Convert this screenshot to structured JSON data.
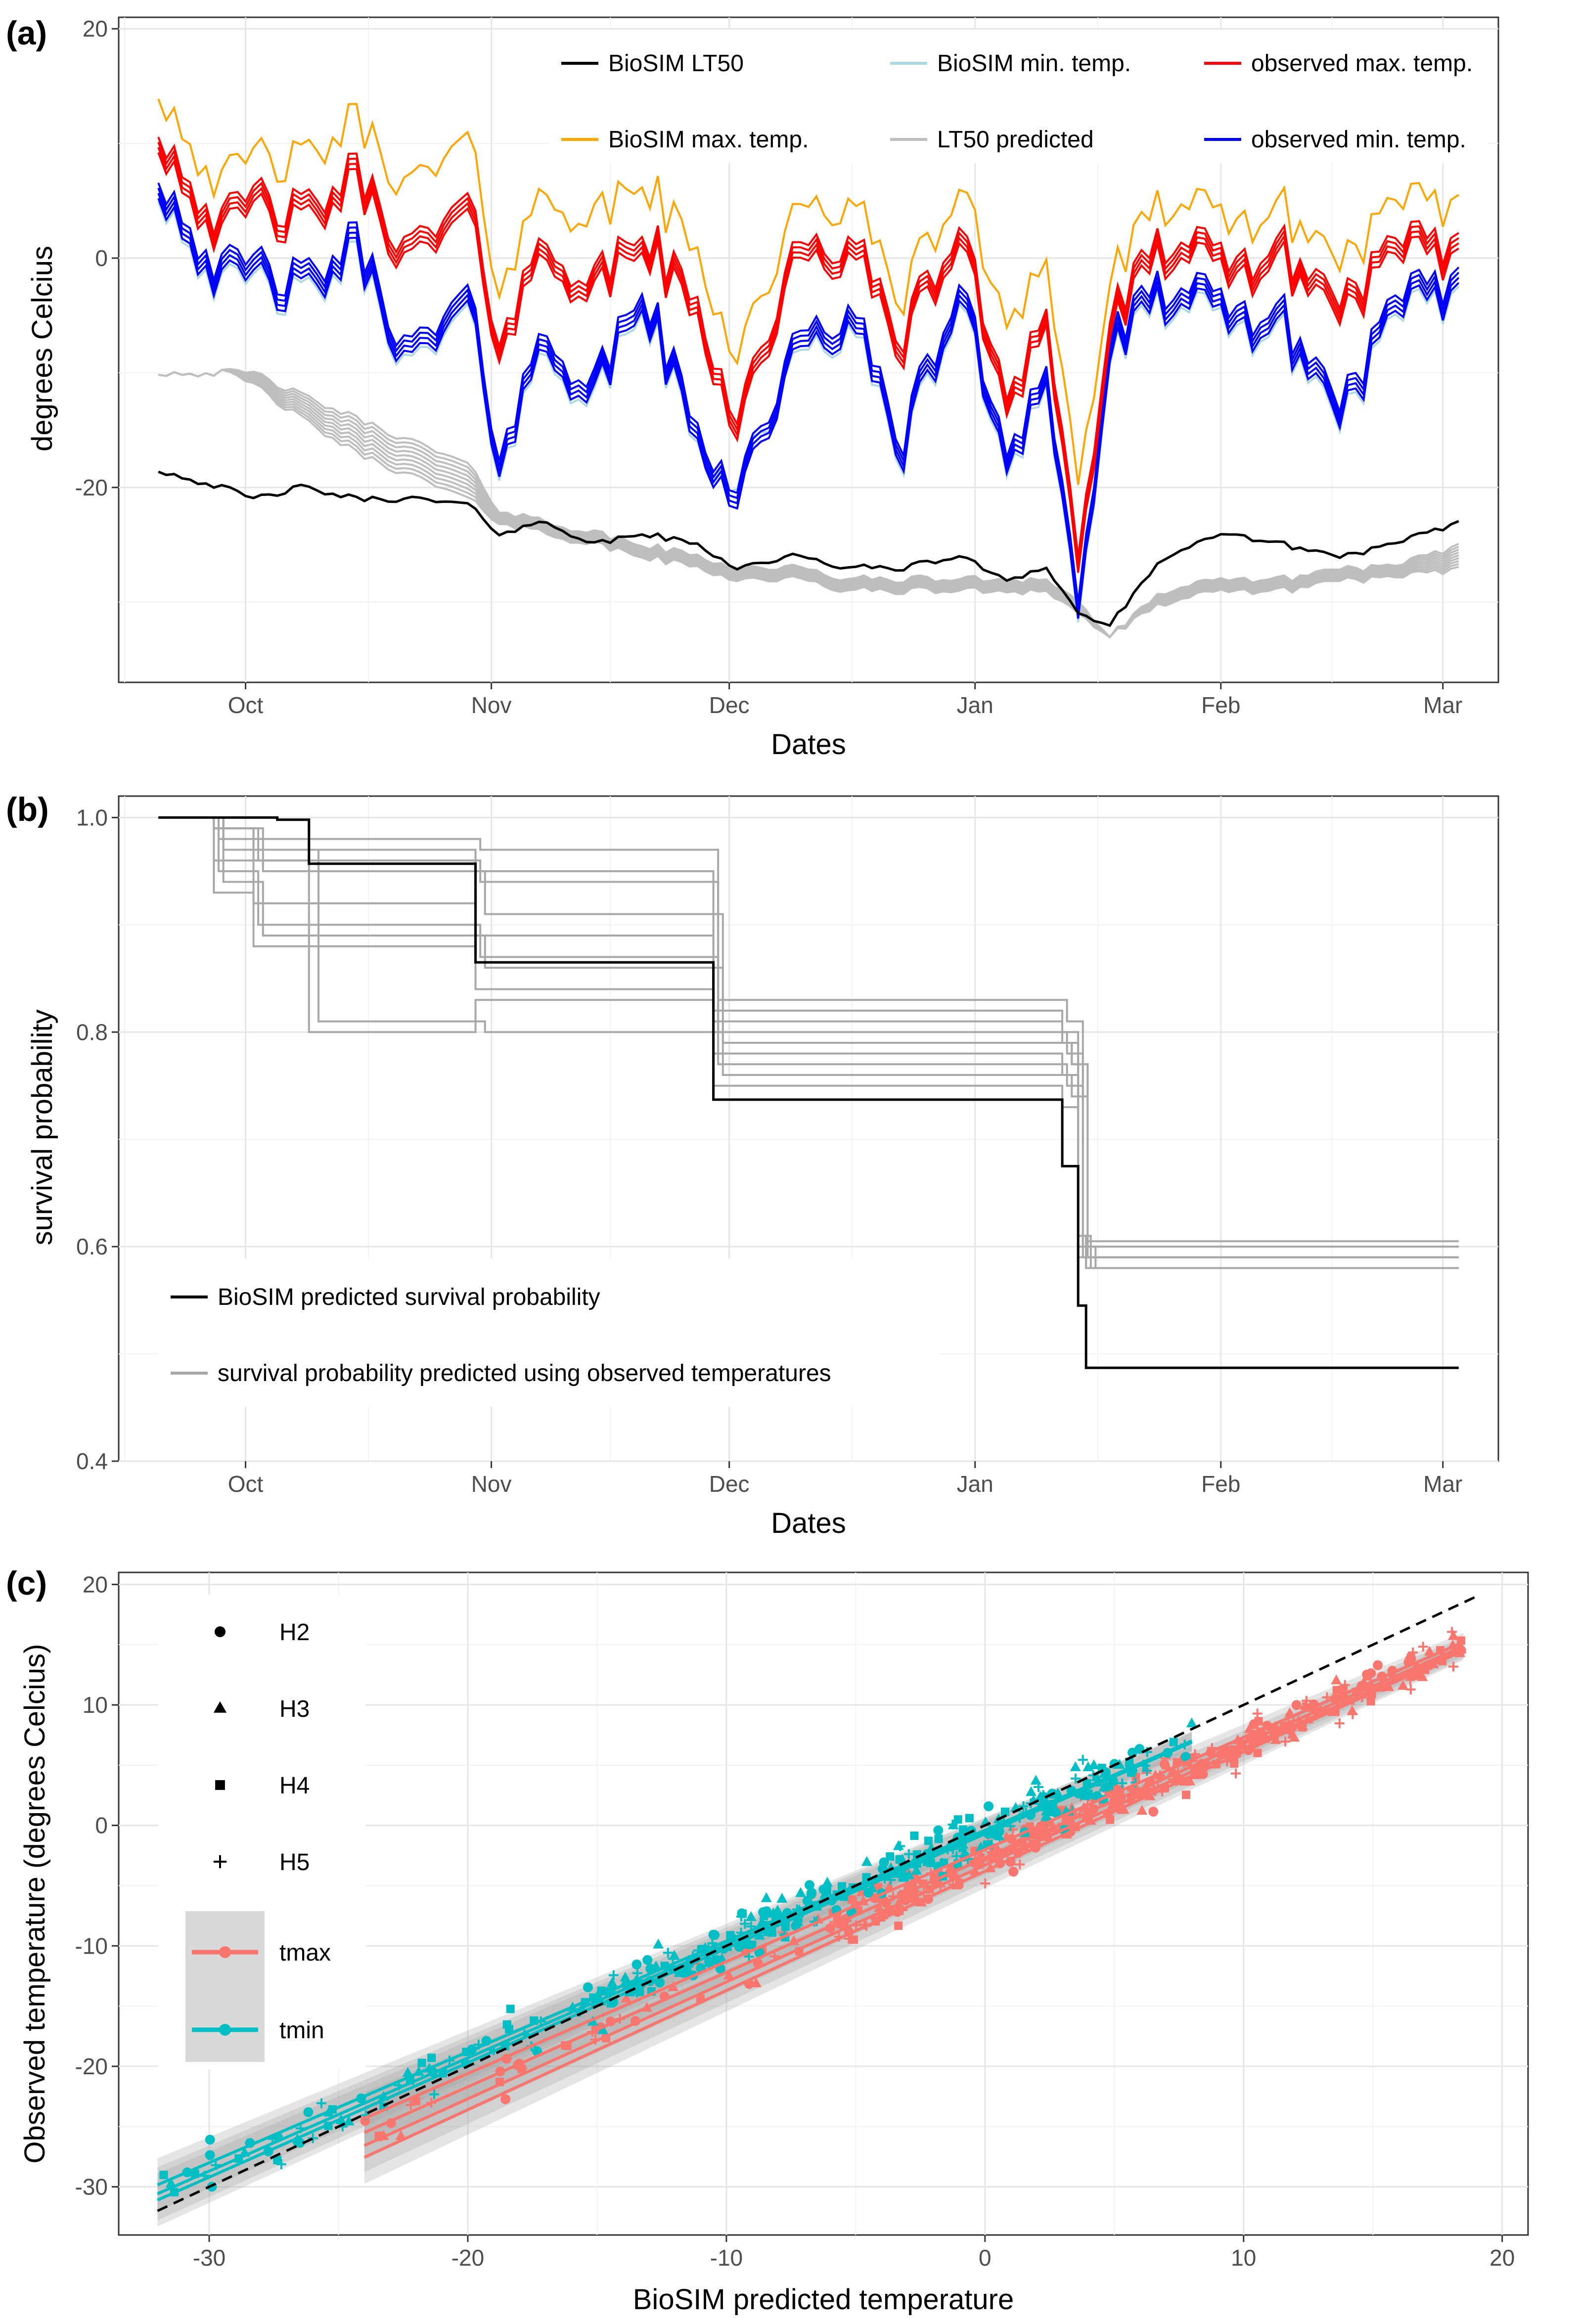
{
  "panels": {
    "a": {
      "label": "(a)",
      "xlabel": "Dates",
      "ylabel": "degrees Celcius"
    },
    "b": {
      "label": "(b)",
      "xlabel": "Dates",
      "ylabel": "survival probability"
    },
    "c": {
      "label": "(c)",
      "xlabel": "BioSIM predicted temperature",
      "ylabel": "Observed temperature (degrees Celcius)"
    }
  },
  "chart_data": [
    {
      "type": "line",
      "panel": "a",
      "x_type": "date",
      "xlim": [
        "2017-09-15",
        "2018-03-08"
      ],
      "ylim": [
        -37,
        21
      ],
      "xticks": [
        {
          "date": "2017-10-01",
          "label": "Oct"
        },
        {
          "date": "2017-11-01",
          "label": "Nov"
        },
        {
          "date": "2017-12-01",
          "label": "Dec"
        },
        {
          "date": "2018-01-01",
          "label": "Jan"
        },
        {
          "date": "2018-02-01",
          "label": "Feb"
        },
        {
          "date": "2018-03-01",
          "label": "Mar"
        }
      ],
      "yticks": [
        -20,
        0,
        20
      ],
      "grid": true,
      "legend": {
        "position": "top-right",
        "entries": [
          {
            "label": "BioSIM LT50",
            "color": "#000000"
          },
          {
            "label": "BioSIM min. temp.",
            "color": "#add8e6"
          },
          {
            "label": "observed max. temp.",
            "color": "#ff0000"
          },
          {
            "label": "BioSIM max. temp.",
            "color": "#ffa500"
          },
          {
            "label": "LT50 predicted",
            "color": "#bebebe"
          },
          {
            "label": "observed min. temp.",
            "color": "#0000ff"
          }
        ]
      },
      "anchors": {
        "dates": [
          "2017-09-20",
          "2017-09-28",
          "2017-10-02",
          "2017-10-08",
          "2017-10-15",
          "2017-10-22",
          "2017-10-29",
          "2017-11-02",
          "2017-11-08",
          "2017-11-14",
          "2017-11-20",
          "2017-11-27",
          "2017-12-02",
          "2017-12-09",
          "2017-12-16",
          "2017-12-23",
          "2017-12-30",
          "2018-01-05",
          "2018-01-10",
          "2018-01-14",
          "2018-01-18",
          "2018-01-25",
          "2018-02-02",
          "2018-02-09",
          "2018-02-16",
          "2018-02-23",
          "2018-03-03"
        ],
        "biosim_max": [
          15,
          6,
          9,
          8,
          12,
          6,
          10,
          -2,
          6,
          3,
          7,
          0,
          -8,
          3,
          5,
          -3,
          6,
          -5,
          0,
          -20,
          -2,
          5,
          3,
          4,
          0,
          4,
          5
        ],
        "observed_max": [
          11,
          2,
          5,
          3,
          7,
          0,
          4,
          -7,
          1,
          -3,
          2,
          -5,
          -14,
          -1,
          1,
          -7,
          2,
          -12,
          -5,
          -27,
          -6,
          1,
          -1,
          0,
          -4,
          0,
          1
        ],
        "observed_min": [
          7,
          -2,
          -1,
          -3,
          1,
          -9,
          -4,
          -17,
          -7,
          -12,
          -3,
          -16,
          -20,
          -9,
          -5,
          -16,
          -3,
          -17,
          -10,
          -31,
          -8,
          -3,
          -5,
          -6,
          -13,
          -5,
          -2
        ],
        "biosim_min": [
          6,
          -3,
          -2,
          -4,
          0,
          -10,
          -5,
          -18,
          -8,
          -13,
          -4,
          -17,
          -19,
          -10,
          -6,
          -17,
          -4,
          -18,
          -11,
          -32,
          -9,
          -4,
          -6,
          -7,
          -14,
          -6,
          -3
        ],
        "biosim_lt50": [
          -18.5,
          -20,
          -21,
          -20,
          -21,
          -21,
          -21.5,
          -24,
          -23,
          -25,
          -24,
          -25,
          -27,
          -26,
          -27,
          -27,
          -26,
          -28,
          -27,
          -31,
          -32,
          -26,
          -24,
          -25,
          -26,
          -25,
          -23
        ],
        "lt50_predicted_upper": [
          -10,
          -10,
          -10,
          -12,
          -14,
          -16,
          -18,
          -22,
          -23,
          -24,
          -25,
          -26,
          -27,
          -27,
          -28,
          -28,
          -28,
          -28,
          -28,
          -30,
          -33,
          -29,
          -28,
          -28,
          -27,
          -27,
          -25
        ],
        "lt50_predicted_lower": [
          -10,
          -10,
          -11,
          -14,
          -17,
          -19,
          -21,
          -23,
          -24,
          -25,
          -26,
          -27,
          -28,
          -28,
          -29,
          -29,
          -29,
          -29,
          -29,
          -31,
          -33,
          -30,
          -29,
          -29,
          -28,
          -28,
          -27
        ]
      }
    },
    {
      "type": "line",
      "panel": "b",
      "x_type": "date",
      "xlim": [
        "2017-09-15",
        "2018-03-08"
      ],
      "ylim": [
        0.4,
        1.02
      ],
      "xticks": [
        {
          "date": "2017-10-01",
          "label": "Oct"
        },
        {
          "date": "2017-11-01",
          "label": "Nov"
        },
        {
          "date": "2017-12-01",
          "label": "Dec"
        },
        {
          "date": "2018-01-01",
          "label": "Jan"
        },
        {
          "date": "2018-02-01",
          "label": "Feb"
        },
        {
          "date": "2018-03-01",
          "label": "Mar"
        }
      ],
      "yticks": [
        0.4,
        0.6,
        0.8,
        1.0
      ],
      "ytick_labels": [
        "0.4",
        "0.6",
        "0.8",
        "1.0"
      ],
      "grid": true,
      "legend": {
        "position": "bottom-left",
        "entries": [
          {
            "label": "BioSIM predicted survival probability",
            "color": "#000000"
          },
          {
            "label": "survival probability predicted using observed temperatures",
            "color": "#a8a8a8"
          }
        ]
      },
      "step_dates": [
        "2017-09-20",
        "2017-09-27",
        "2017-10-02",
        "2017-10-05",
        "2017-10-09",
        "2017-10-30",
        "2017-11-29",
        "2018-01-12",
        "2018-01-14",
        "2018-01-15",
        "2018-03-03"
      ],
      "biosim_survival": [
        1.0,
        1.0,
        1.0,
        0.998,
        0.957,
        0.865,
        0.737,
        0.675,
        0.545,
        0.487,
        0.487
      ],
      "observed_survival_series": [
        [
          1.0,
          0.99,
          0.97,
          0.97,
          0.97,
          0.95,
          0.81,
          0.79,
          0.61,
          0.58,
          0.58
        ],
        [
          1.0,
          0.98,
          0.96,
          0.96,
          0.96,
          0.94,
          0.8,
          0.78,
          0.6,
          0.59,
          0.59
        ],
        [
          1.0,
          0.97,
          0.95,
          0.95,
          0.95,
          0.91,
          0.79,
          0.77,
          0.6,
          0.59,
          0.59
        ],
        [
          1.0,
          0.96,
          0.92,
          0.92,
          0.92,
          0.89,
          0.78,
          0.76,
          0.6,
          0.59,
          0.59
        ],
        [
          1.0,
          0.95,
          0.9,
          0.9,
          0.9,
          0.87,
          0.77,
          0.75,
          0.59,
          0.58,
          0.58
        ],
        [
          1.0,
          0.94,
          0.89,
          0.89,
          0.89,
          0.86,
          0.76,
          0.74,
          0.59,
          0.58,
          0.58
        ],
        [
          1.0,
          0.93,
          0.88,
          0.88,
          0.88,
          0.84,
          0.75,
          0.73,
          0.59,
          0.58,
          0.58
        ],
        [
          1.0,
          0.99,
          0.98,
          0.98,
          0.98,
          0.97,
          0.83,
          0.81,
          0.61,
          0.6,
          0.6
        ],
        [
          1.0,
          0.99,
          0.97,
          0.97,
          0.81,
          0.8,
          0.79,
          0.77,
          0.6,
          0.6,
          0.6
        ],
        [
          1.0,
          0.99,
          0.96,
          0.96,
          0.8,
          0.83,
          0.82,
          0.8,
          0.61,
          0.605,
          0.605
        ]
      ]
    },
    {
      "type": "scatter",
      "panel": "c",
      "xlim": [
        -33.5,
        21
      ],
      "ylim": [
        -34,
        21
      ],
      "xticks": [
        -30,
        -20,
        -10,
        0,
        10,
        20
      ],
      "yticks": [
        -30,
        -20,
        -10,
        0,
        10,
        20
      ],
      "grid": true,
      "reference_line": {
        "slope": 1,
        "intercept": 0,
        "style": "dashed",
        "color": "#000000"
      },
      "shape_legend": {
        "position": "top-left",
        "entries": [
          "H2",
          "H3",
          "H4",
          "H5"
        ]
      },
      "color_legend": {
        "position": "left",
        "entries": [
          {
            "label": "tmax",
            "color": "#f8766d"
          },
          {
            "label": "tmin",
            "color": "#00bfc4"
          }
        ]
      },
      "series": [
        {
          "name": "tmax",
          "color": "#f8766d",
          "x_range": [
            -24,
            18.5
          ],
          "fits": [
            {
              "slope": 0.93,
              "intercept": -2.0
            },
            {
              "slope": 0.95,
              "intercept": -2.7
            },
            {
              "slope": 0.97,
              "intercept": -3.3
            },
            {
              "slope": 0.99,
              "intercept": -3.8
            }
          ]
        },
        {
          "name": "tmin",
          "color": "#00bfc4",
          "x_range": [
            -32,
            8
          ],
          "fits": [
            {
              "slope": 0.92,
              "intercept": -0.4
            },
            {
              "slope": 0.94,
              "intercept": -0.5
            },
            {
              "slope": 0.95,
              "intercept": -0.7
            }
          ]
        }
      ]
    }
  ]
}
